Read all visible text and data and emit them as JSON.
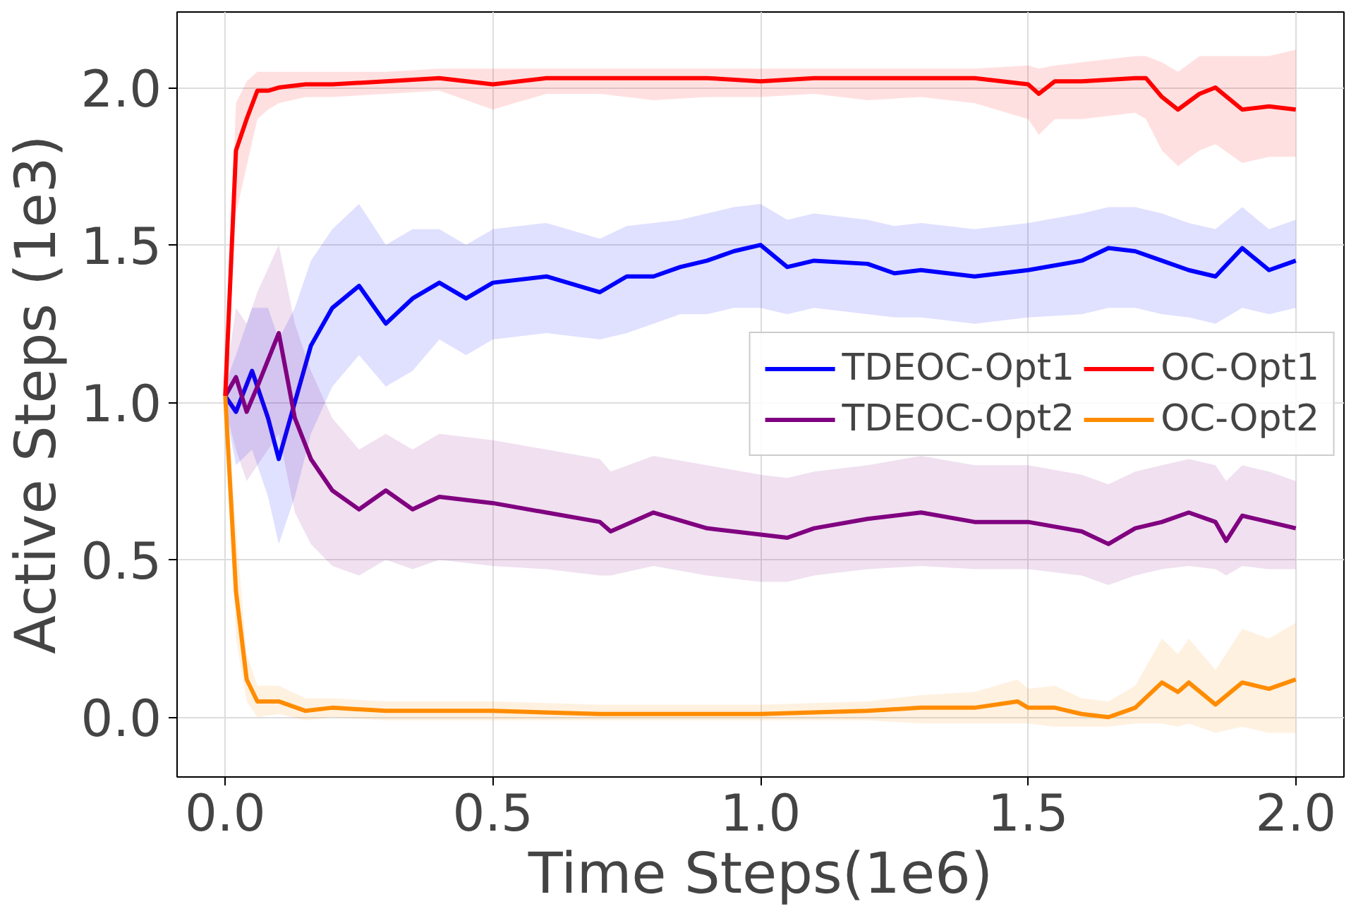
{
  "chart_data": {
    "type": "line",
    "xlabel": "Time Steps(1e6)",
    "ylabel": "Active Steps (1e3)",
    "xlim": [
      -0.09,
      2.09
    ],
    "ylim": [
      -0.19,
      2.24
    ],
    "xticks": [
      {
        "value": 0,
        "label": "0.0"
      },
      0.5,
      {
        "value": 1,
        "label": "1.0"
      },
      1.5,
      {
        "value": 2,
        "label": "2.0"
      }
    ],
    "yticks": [
      {
        "value": 0,
        "label": "0.0"
      },
      0.5,
      {
        "value": 1,
        "label": "1.0"
      },
      1.5,
      {
        "value": 2,
        "label": "2.0"
      }
    ],
    "grid": true,
    "legend": "right",
    "line_style": "solid",
    "series": [
      {
        "name": "TDEOC-Opt1",
        "color": "#0000ff",
        "x": [
          0,
          0.02,
          0.05,
          0.08,
          0.1,
          0.13,
          0.16,
          0.2,
          0.25,
          0.3,
          0.35,
          0.4,
          0.45,
          0.5,
          0.6,
          0.7,
          0.75,
          0.8,
          0.85,
          0.9,
          0.95,
          1.0,
          1.05,
          1.1,
          1.2,
          1.25,
          1.3,
          1.4,
          1.5,
          1.6,
          1.65,
          1.7,
          1.75,
          1.8,
          1.85,
          1.9,
          1.95,
          2.0
        ],
        "values": [
          1.02,
          0.97,
          1.1,
          0.95,
          0.82,
          1.0,
          1.18,
          1.3,
          1.37,
          1.25,
          1.33,
          1.38,
          1.33,
          1.38,
          1.4,
          1.35,
          1.4,
          1.4,
          1.43,
          1.45,
          1.48,
          1.5,
          1.43,
          1.45,
          1.44,
          1.41,
          1.42,
          1.4,
          1.42,
          1.45,
          1.49,
          1.48,
          1.45,
          1.42,
          1.4,
          1.49,
          1.42,
          1.45
        ],
        "lower": [
          0.98,
          0.8,
          0.85,
          0.7,
          0.55,
          0.7,
          0.9,
          1.05,
          1.15,
          1.05,
          1.1,
          1.2,
          1.15,
          1.2,
          1.22,
          1.2,
          1.22,
          1.25,
          1.28,
          1.28,
          1.3,
          1.3,
          1.28,
          1.3,
          1.28,
          1.27,
          1.27,
          1.25,
          1.27,
          1.28,
          1.3,
          1.3,
          1.28,
          1.27,
          1.25,
          1.3,
          1.28,
          1.3
        ],
        "upper": [
          1.06,
          1.15,
          1.3,
          1.3,
          1.2,
          1.3,
          1.45,
          1.55,
          1.63,
          1.5,
          1.55,
          1.55,
          1.5,
          1.55,
          1.57,
          1.52,
          1.56,
          1.57,
          1.58,
          1.6,
          1.62,
          1.63,
          1.58,
          1.6,
          1.58,
          1.56,
          1.57,
          1.55,
          1.57,
          1.6,
          1.62,
          1.62,
          1.6,
          1.57,
          1.55,
          1.62,
          1.55,
          1.58
        ]
      },
      {
        "name": "TDEOC-Opt2",
        "color": "#800080",
        "x": [
          0,
          0.02,
          0.04,
          0.06,
          0.1,
          0.13,
          0.16,
          0.2,
          0.25,
          0.3,
          0.35,
          0.4,
          0.5,
          0.6,
          0.7,
          0.72,
          0.8,
          0.9,
          1.0,
          1.05,
          1.1,
          1.2,
          1.3,
          1.4,
          1.5,
          1.6,
          1.65,
          1.7,
          1.75,
          1.8,
          1.85,
          1.87,
          1.9,
          1.95,
          2.0
        ],
        "values": [
          1.02,
          1.08,
          0.97,
          1.05,
          1.22,
          0.95,
          0.82,
          0.72,
          0.66,
          0.72,
          0.66,
          0.7,
          0.68,
          0.65,
          0.62,
          0.59,
          0.65,
          0.6,
          0.58,
          0.57,
          0.6,
          0.63,
          0.65,
          0.62,
          0.62,
          0.59,
          0.55,
          0.6,
          0.62,
          0.65,
          0.62,
          0.56,
          0.64,
          0.62,
          0.6
        ],
        "lower": [
          0.98,
          0.85,
          0.75,
          0.8,
          0.9,
          0.65,
          0.55,
          0.48,
          0.45,
          0.5,
          0.47,
          0.5,
          0.48,
          0.47,
          0.45,
          0.45,
          0.48,
          0.45,
          0.43,
          0.43,
          0.45,
          0.47,
          0.48,
          0.47,
          0.47,
          0.45,
          0.42,
          0.45,
          0.47,
          0.48,
          0.47,
          0.45,
          0.48,
          0.47,
          0.47
        ],
        "upper": [
          1.06,
          1.3,
          1.25,
          1.35,
          1.5,
          1.25,
          1.1,
          0.95,
          0.85,
          0.9,
          0.85,
          0.9,
          0.88,
          0.85,
          0.82,
          0.78,
          0.83,
          0.8,
          0.77,
          0.76,
          0.78,
          0.8,
          0.83,
          0.8,
          0.8,
          0.77,
          0.74,
          0.78,
          0.8,
          0.82,
          0.8,
          0.75,
          0.8,
          0.78,
          0.75
        ]
      },
      {
        "name": "OC-Opt1",
        "color": "#ff0000",
        "x": [
          0,
          0.02,
          0.04,
          0.06,
          0.08,
          0.1,
          0.15,
          0.2,
          0.3,
          0.4,
          0.5,
          0.6,
          0.7,
          0.8,
          0.9,
          1.0,
          1.1,
          1.2,
          1.3,
          1.4,
          1.5,
          1.52,
          1.55,
          1.6,
          1.7,
          1.72,
          1.75,
          1.78,
          1.82,
          1.85,
          1.9,
          1.95,
          2.0
        ],
        "values": [
          1.02,
          1.8,
          1.9,
          1.99,
          1.99,
          2.0,
          2.01,
          2.01,
          2.02,
          2.03,
          2.01,
          2.03,
          2.03,
          2.03,
          2.03,
          2.02,
          2.03,
          2.03,
          2.03,
          2.03,
          2.01,
          1.98,
          2.02,
          2.02,
          2.03,
          2.03,
          1.97,
          1.93,
          1.98,
          2.0,
          1.93,
          1.94,
          1.93
        ],
        "lower": [
          0.97,
          1.6,
          1.75,
          1.9,
          1.93,
          1.95,
          1.97,
          1.97,
          1.98,
          1.99,
          1.93,
          1.98,
          1.98,
          1.96,
          1.97,
          1.97,
          1.98,
          1.96,
          1.97,
          1.95,
          1.9,
          1.85,
          1.9,
          1.9,
          1.92,
          1.9,
          1.8,
          1.75,
          1.8,
          1.82,
          1.76,
          1.78,
          1.78
        ],
        "upper": [
          1.07,
          1.95,
          2.02,
          2.05,
          2.05,
          2.05,
          2.05,
          2.05,
          2.05,
          2.06,
          2.06,
          2.06,
          2.06,
          2.06,
          2.06,
          2.06,
          2.06,
          2.06,
          2.06,
          2.06,
          2.07,
          2.06,
          2.07,
          2.08,
          2.1,
          2.1,
          2.08,
          2.05,
          2.1,
          2.1,
          2.1,
          2.1,
          2.12
        ]
      },
      {
        "name": "OC-Opt2",
        "color": "#ff8c00",
        "x": [
          0,
          0.02,
          0.04,
          0.06,
          0.1,
          0.15,
          0.2,
          0.3,
          0.5,
          0.7,
          1.0,
          1.2,
          1.3,
          1.4,
          1.48,
          1.5,
          1.55,
          1.6,
          1.65,
          1.7,
          1.75,
          1.78,
          1.8,
          1.85,
          1.9,
          1.95,
          2.0
        ],
        "values": [
          1.02,
          0.4,
          0.12,
          0.05,
          0.05,
          0.02,
          0.03,
          0.02,
          0.02,
          0.01,
          0.01,
          0.02,
          0.03,
          0.03,
          0.05,
          0.03,
          0.03,
          0.01,
          0.0,
          0.03,
          0.11,
          0.08,
          0.11,
          0.04,
          0.11,
          0.09,
          0.12
        ],
        "lower": [
          0.98,
          0.25,
          0.05,
          0.0,
          0.01,
          -0.01,
          0.0,
          -0.01,
          -0.01,
          -0.01,
          -0.01,
          -0.01,
          -0.02,
          -0.02,
          -0.02,
          -0.02,
          -0.03,
          -0.03,
          -0.03,
          -0.02,
          -0.02,
          -0.03,
          -0.02,
          -0.05,
          -0.03,
          -0.05,
          -0.05
        ],
        "upper": [
          1.06,
          0.6,
          0.2,
          0.1,
          0.1,
          0.06,
          0.06,
          0.05,
          0.05,
          0.04,
          0.04,
          0.05,
          0.07,
          0.08,
          0.12,
          0.09,
          0.1,
          0.06,
          0.05,
          0.1,
          0.25,
          0.2,
          0.25,
          0.15,
          0.28,
          0.25,
          0.3
        ]
      }
    ]
  }
}
